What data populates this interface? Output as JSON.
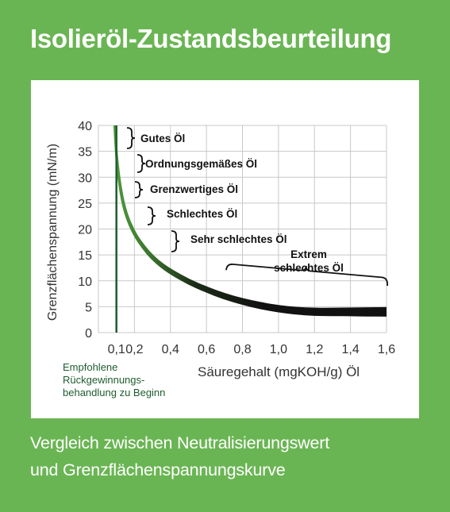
{
  "header": {
    "title": "Isolieröl-Zustandsbeurteilung"
  },
  "footer": {
    "subtitle_line1": "Vergleich zwischen Neutralisierungswert",
    "subtitle_line2": "und Grenzflächenspannungskurve"
  },
  "colors": {
    "background": "#6ab553",
    "panel": "#ffffff",
    "curve_start": "#4f9a3c",
    "curve_end": "#111111",
    "recommendation_line": "#1e5c2e",
    "grid": "#c8c8c8"
  },
  "chart_data": {
    "type": "line",
    "xlabel": "Säuregehalt (mgKOH/g) Öl",
    "ylabel": "Grenzflächenspannung (mN/m)",
    "xlim": [
      0,
      1.6
    ],
    "ylim": [
      0,
      40
    ],
    "x_ticks": [
      "0,1",
      "0,2",
      "0,4",
      "0,6",
      "0,8",
      "1,0",
      "1,2",
      "1,4",
      "1,6"
    ],
    "x_tick_values": [
      0.1,
      0.2,
      0.4,
      0.6,
      0.8,
      1.0,
      1.2,
      1.4,
      1.6
    ],
    "y_ticks": [
      "0",
      "5",
      "10",
      "15",
      "20",
      "25",
      "30",
      "35",
      "40"
    ],
    "y_tick_values": [
      0,
      5,
      10,
      15,
      20,
      25,
      30,
      35,
      40
    ],
    "grid": true,
    "series": [
      {
        "x": [
          0.09,
          0.1,
          0.12,
          0.15,
          0.2,
          0.25,
          0.3,
          0.35,
          0.4,
          0.5,
          0.6,
          0.7,
          0.8,
          0.9,
          1.0,
          1.1,
          1.2,
          1.3,
          1.4,
          1.5,
          1.6
        ],
        "y": [
          40,
          34,
          28,
          23,
          19,
          16.5,
          14.5,
          13,
          11.8,
          9.8,
          8.3,
          7.0,
          6.0,
          5.2,
          4.6,
          4.2,
          4.0,
          4.0,
          4.0,
          4.0,
          4.0
        ]
      }
    ],
    "vertical_line": {
      "x": 0.1,
      "label_lines": [
        "Empfohlene",
        "Rückgewinnungs-",
        "behandlung zu Beginn"
      ]
    },
    "annotations": [
      {
        "lines": [
          "Gutes Öl"
        ]
      },
      {
        "lines": [
          "Ordnungsgemäßes Öl"
        ]
      },
      {
        "lines": [
          "Grenzwertiges Öl"
        ]
      },
      {
        "lines": [
          "Schlechtes Öl"
        ]
      },
      {
        "lines": [
          "Sehr schlechtes Öl"
        ]
      },
      {
        "lines": [
          "Extrem",
          "schlechtes Öl"
        ]
      }
    ]
  }
}
